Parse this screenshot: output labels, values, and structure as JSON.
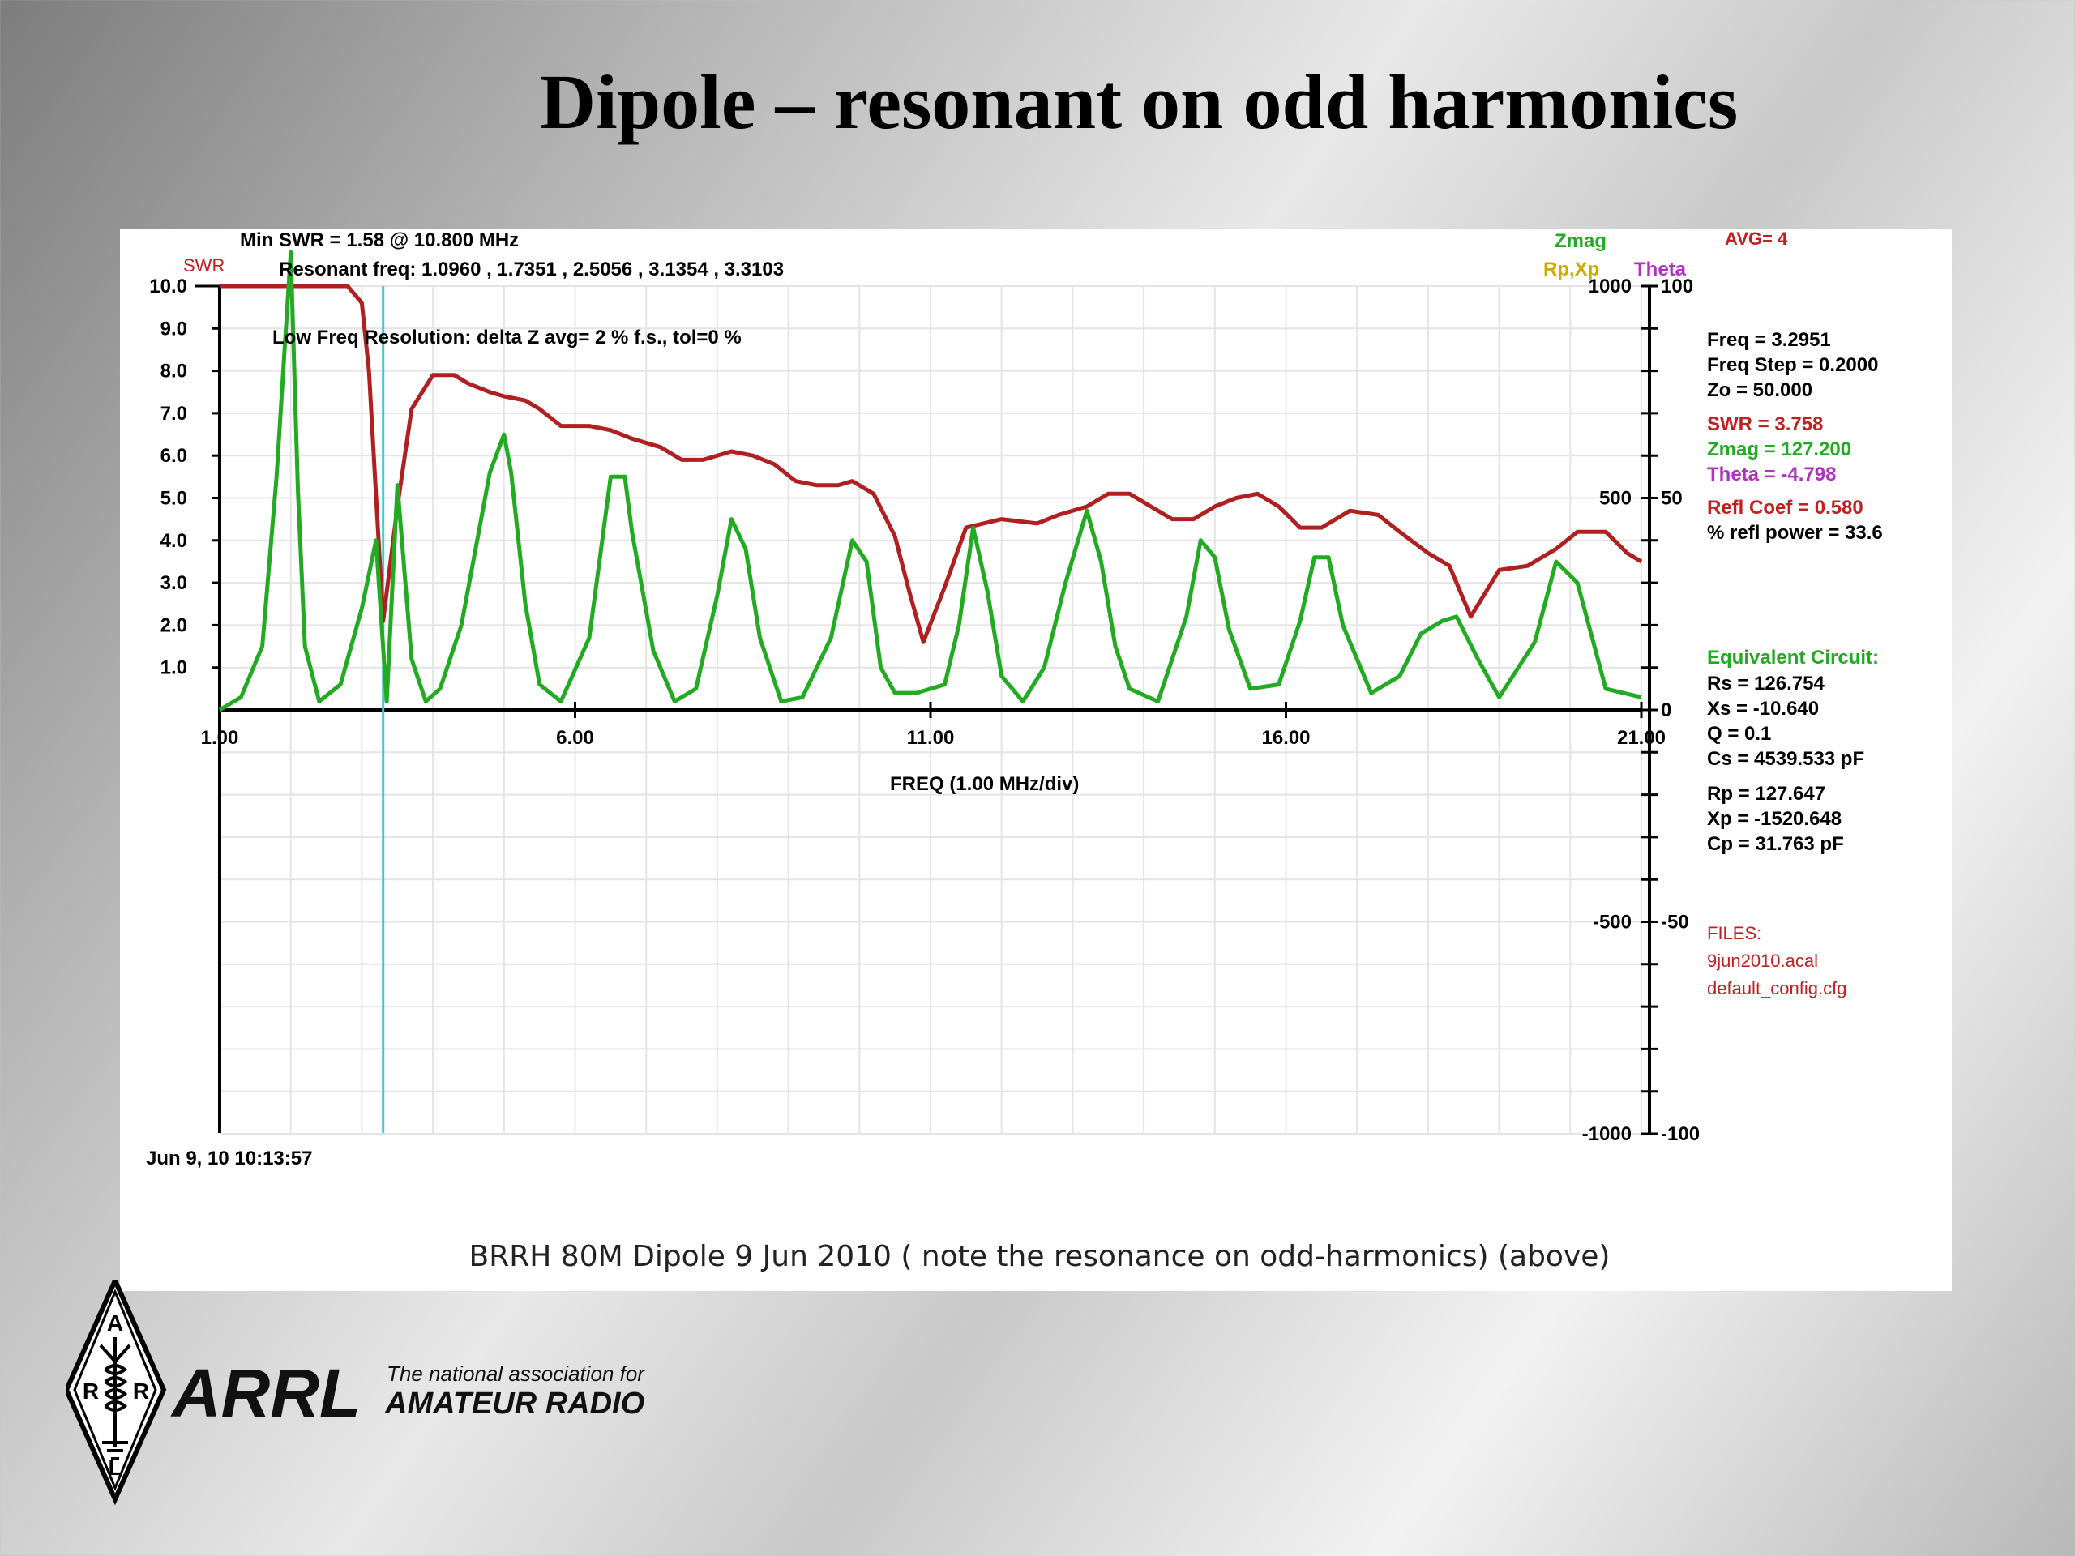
{
  "slide": {
    "title": "Dipole – resonant on odd harmonics",
    "caption": "BRRH  80M Dipole  9 Jun 2010 ( note the resonance on odd-harmonics) (above)"
  },
  "logo": {
    "name": "ARRL",
    "tagline_line1": "The national association for",
    "tagline_line2": "AMATEUR RADIO",
    "diamond_letters": [
      "A",
      "R",
      "R",
      "L"
    ]
  },
  "colors": {
    "swr": "#b02020",
    "zmag": "#22aa22",
    "theta": "#b030c0",
    "rpxp": "#ccaa00",
    "cursor": "#40c8d8",
    "grid": "#e4e4e4",
    "axis": "#000000",
    "info_red": "#c02020",
    "info_green": "#22aa22"
  },
  "chart_data": {
    "type": "line",
    "xlabel": "FREQ (1.00 MHz/div)",
    "xlim": [
      1.0,
      21.0
    ],
    "x_ticks": [
      "1.00",
      "6.00",
      "11.00",
      "16.00",
      "21.00"
    ],
    "left_axis": {
      "label": "SWR",
      "ylim": [
        0,
        10
      ],
      "ticks": [
        "10.0",
        "9.0",
        "8.0",
        "7.0",
        "6.0",
        "5.0",
        "4.0",
        "3.0",
        "2.0",
        "1.0"
      ]
    },
    "right_axis_zmag": {
      "labels": [
        "Zmag",
        "Rp,Xp"
      ],
      "ylim": [
        -1000,
        1000
      ],
      "ticks": [
        "1000",
        "500",
        "-500",
        "-1000"
      ]
    },
    "right_axis_theta": {
      "label": "Theta",
      "ylim": [
        -100,
        100
      ],
      "ticks": [
        "100",
        "50",
        "0",
        "-50",
        "-100"
      ]
    },
    "header": {
      "min_swr": "Min SWR =    1.58 @  10.800 MHz",
      "resonant": "Resonant freq:  1.0960 , 1.7351 , 2.5056 , 3.1354 , 3.3103",
      "avg": "AVG=  4",
      "low_freq_note": "Low Freq Resolution:  delta Z avg= 2 % f.s.,     tol=0 %",
      "timestamp": "Jun 9, 10  10:13:57"
    },
    "cursor_x": 3.3,
    "series": [
      {
        "name": "SWR",
        "axis": "left",
        "x": [
          1.0,
          1.5,
          2.0,
          2.5,
          2.8,
          3.0,
          3.1,
          3.3,
          3.5,
          3.7,
          4.0,
          4.3,
          4.5,
          4.8,
          5.0,
          5.3,
          5.5,
          5.8,
          6.2,
          6.5,
          6.8,
          7.2,
          7.5,
          7.8,
          8.2,
          8.5,
          8.8,
          9.1,
          9.4,
          9.7,
          9.9,
          10.2,
          10.5,
          10.7,
          10.9,
          11.2,
          11.5,
          12.0,
          12.5,
          12.8,
          13.2,
          13.5,
          13.8,
          14.1,
          14.4,
          14.7,
          15.0,
          15.3,
          15.6,
          15.9,
          16.2,
          16.5,
          16.9,
          17.3,
          17.6,
          18.0,
          18.3,
          18.6,
          19.0,
          19.4,
          19.8,
          20.1,
          20.5,
          20.8,
          21.0
        ],
        "values": [
          10.0,
          10.0,
          10.0,
          10.0,
          10.0,
          9.6,
          8.0,
          2.1,
          4.8,
          7.1,
          7.9,
          7.9,
          7.7,
          7.5,
          7.4,
          7.3,
          7.1,
          6.7,
          6.7,
          6.6,
          6.4,
          6.2,
          5.9,
          5.9,
          6.1,
          6.0,
          5.8,
          5.4,
          5.3,
          5.3,
          5.4,
          5.1,
          4.1,
          2.8,
          1.6,
          2.9,
          4.3,
          4.5,
          4.4,
          4.6,
          4.8,
          5.1,
          5.1,
          4.8,
          4.5,
          4.5,
          4.8,
          5.0,
          5.1,
          4.8,
          4.3,
          4.3,
          4.7,
          4.6,
          4.2,
          3.7,
          3.4,
          2.2,
          3.3,
          3.4,
          3.8,
          4.2,
          4.2,
          3.7,
          3.5
        ]
      },
      {
        "name": "Zmag",
        "axis": "right_zmag",
        "x": [
          1.0,
          1.3,
          1.6,
          1.8,
          2.0,
          2.1,
          2.2,
          2.4,
          2.7,
          3.0,
          3.2,
          3.35,
          3.5,
          3.7,
          3.9,
          4.1,
          4.4,
          4.8,
          5.0,
          5.1,
          5.3,
          5.5,
          5.8,
          6.2,
          6.5,
          6.7,
          6.8,
          7.1,
          7.4,
          7.7,
          8.0,
          8.2,
          8.4,
          8.6,
          8.9,
          9.2,
          9.6,
          9.9,
          10.1,
          10.3,
          10.5,
          10.8,
          11.2,
          11.4,
          11.6,
          11.8,
          12.0,
          12.3,
          12.6,
          12.9,
          13.2,
          13.4,
          13.6,
          13.8,
          14.2,
          14.6,
          14.8,
          15.0,
          15.2,
          15.5,
          15.9,
          16.2,
          16.4,
          16.6,
          16.8,
          17.2,
          17.6,
          17.9,
          18.2,
          18.4,
          18.7,
          19.0,
          19.5,
          19.8,
          20.1,
          20.5,
          21.0
        ],
        "values": [
          0,
          30,
          150,
          550,
          1080,
          520,
          150,
          20,
          60,
          240,
          400,
          20,
          530,
          120,
          20,
          50,
          200,
          560,
          650,
          560,
          250,
          60,
          20,
          170,
          550,
          550,
          420,
          140,
          20,
          50,
          270,
          450,
          380,
          170,
          20,
          30,
          170,
          400,
          350,
          100,
          40,
          40,
          60,
          200,
          430,
          280,
          80,
          20,
          100,
          300,
          470,
          350,
          150,
          50,
          20,
          220,
          400,
          360,
          190,
          50,
          60,
          210,
          360,
          360,
          200,
          40,
          80,
          180,
          210,
          220,
          120,
          30,
          160,
          350,
          300,
          50,
          30
        ]
      }
    ],
    "readouts": {
      "freq": "Freq =  3.2951",
      "freq_step": "Freq Step =  0.2000",
      "zo": "Zo =   50.000",
      "swr": "SWR  =    3.758",
      "zmag": "Zmag =  127.200",
      "theta": "Theta =    -4.798",
      "refl_coef": "Refl Coef    = 0.580",
      "refl_power": "% refl power = 33.6",
      "equiv_title": "Equivalent Circuit:",
      "rs": "Rs =  126.754",
      "xs": "Xs =  -10.640",
      "q": "Q =  0.1",
      "cs": "Cs = 4539.533  pF",
      "rp": "Rp =  127.647",
      "xp": "Xp = -1520.648",
      "cp": "Cp =   31.763  pF",
      "files_title": "FILES:",
      "file1": "9jun2010.acal",
      "file2": "default_config.cfg"
    }
  }
}
